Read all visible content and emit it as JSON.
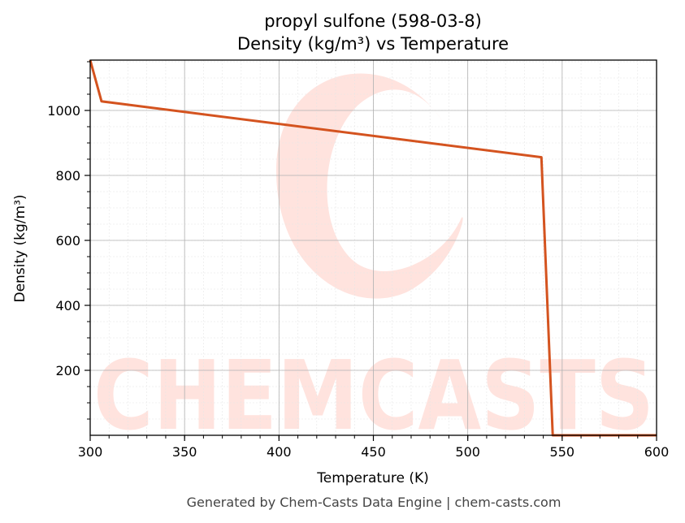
{
  "chart_data": {
    "type": "line",
    "title": "propyl sulfone (598-03-8)",
    "subtitle": "Density (kg/m³) vs Temperature",
    "xlabel": "Temperature (K)",
    "ylabel": "Density (kg/m³)",
    "xlim": [
      300,
      600
    ],
    "ylim": [
      0,
      1155
    ],
    "x_ticks": [
      300,
      350,
      400,
      450,
      500,
      550,
      600
    ],
    "y_ticks": [
      200,
      400,
      600,
      800,
      1000
    ],
    "grid": true,
    "series": [
      {
        "color": "#d4531f",
        "x": [
          300,
          306,
          539,
          545,
          600
        ],
        "y": [
          1155,
          1028,
          856,
          0,
          0
        ]
      }
    ]
  },
  "watermark": {
    "text": "CHEMCASTS",
    "color": "#ffe3de"
  },
  "footer": "Generated by Chem-Casts Data Engine | chem-casts.com"
}
